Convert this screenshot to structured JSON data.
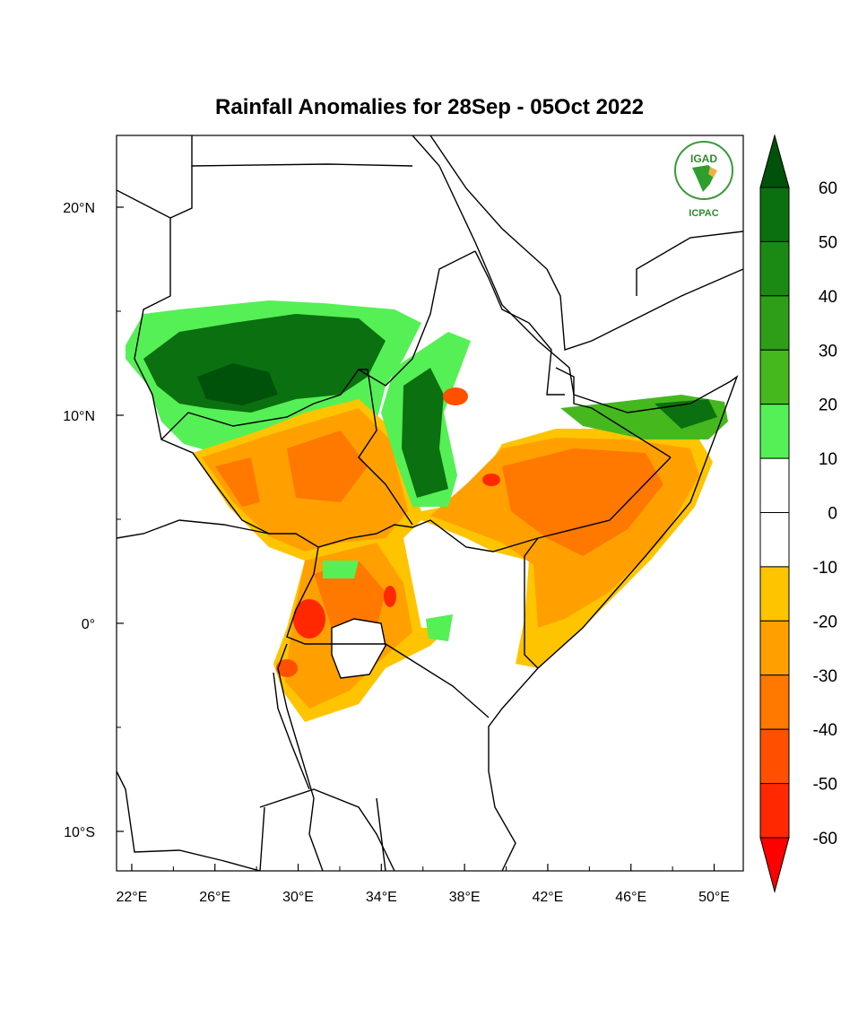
{
  "title": "Rainfall Anomalies for 28Sep - 05Oct 2022",
  "logo": {
    "top_text": "IGAD",
    "bottom_text": "ICPAC"
  },
  "map": {
    "lon_ticks": [
      "22°E",
      "26°E",
      "30°E",
      "34°E",
      "38°E",
      "42°E",
      "46°E",
      "50°E"
    ],
    "lon_values": [
      22,
      26,
      30,
      34,
      38,
      42,
      46,
      50
    ],
    "lat_ticks": [
      "20°N",
      "10°N",
      "0°",
      "10°S"
    ],
    "lat_values": [
      20,
      10,
      0,
      -10
    ],
    "lon_range": [
      21.27,
      51.4
    ],
    "lat_range": [
      -11.9,
      23.45
    ]
  },
  "legend": {
    "labels": [
      "60",
      "50",
      "40",
      "30",
      "20",
      "10",
      "0",
      "-10",
      "-20",
      "-30",
      "-40",
      "-50",
      "-60"
    ],
    "colors": [
      "#00520a",
      "#0b7010",
      "#1a8a14",
      "#2e9e18",
      "#45b81e",
      "#55f055",
      "#ffffff",
      "#ffffff",
      "#ffc400",
      "#ffa000",
      "#ff7800",
      "#ff5000",
      "#ff2800",
      "#ff0000"
    ]
  }
}
